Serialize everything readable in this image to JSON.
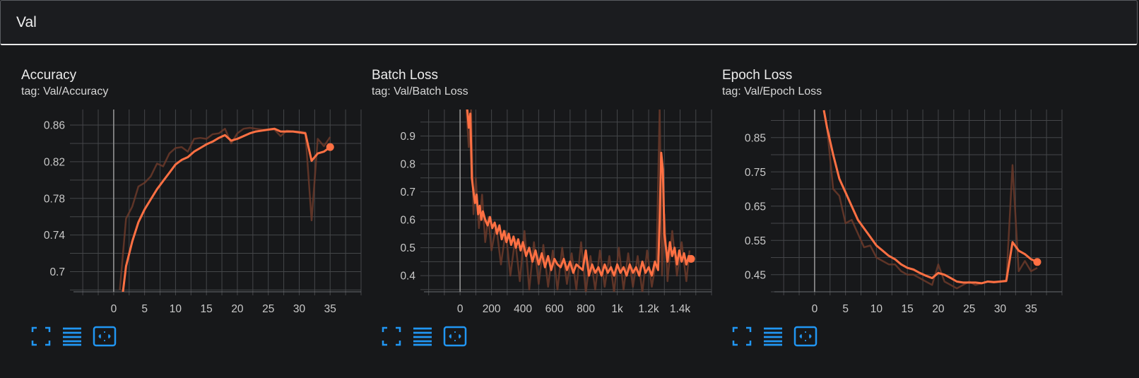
{
  "section": {
    "title": "Val"
  },
  "accent_color": "#ff7043",
  "toolbar_icons": [
    "fullscreen-icon",
    "list-icon",
    "fit-domain-icon"
  ],
  "chart_data": [
    {
      "type": "line",
      "title": "Accuracy",
      "tag": "tag: Val/Accuracy",
      "xlim": [
        -6.5,
        40
      ],
      "ylim": [
        0.678,
        0.877
      ],
      "x_ticks": [
        0,
        5,
        10,
        15,
        20,
        25,
        30,
        35
      ],
      "x_tick_labels": [
        "0",
        "5",
        "10",
        "15",
        "20",
        "25",
        "30",
        "35"
      ],
      "y_ticks": [
        0.7,
        0.74,
        0.78,
        0.82,
        0.86
      ],
      "y_tick_labels": [
        "0.7",
        "0.74",
        "0.78",
        "0.82",
        "0.86"
      ],
      "grid": true,
      "series": [
        {
          "role": "raw",
          "x": [
            1,
            2,
            3,
            4,
            5,
            6,
            7,
            8,
            9,
            10,
            11,
            12,
            13,
            14,
            15,
            16,
            17,
            18,
            19,
            20,
            21,
            22,
            23,
            24,
            25,
            26,
            27,
            28,
            29,
            30,
            31,
            32,
            33,
            34,
            35
          ],
          "values": [
            0.68,
            0.758,
            0.771,
            0.793,
            0.797,
            0.804,
            0.818,
            0.815,
            0.829,
            0.835,
            0.836,
            0.831,
            0.845,
            0.846,
            0.845,
            0.85,
            0.851,
            0.856,
            0.84,
            0.851,
            0.856,
            0.857,
            0.856,
            0.855,
            0.855,
            0.855,
            0.848,
            0.854,
            0.853,
            0.853,
            0.852,
            0.756,
            0.845,
            0.837,
            0.847
          ]
        },
        {
          "role": "smoothed",
          "x": [
            1.5,
            2,
            3,
            4,
            5,
            6,
            7,
            8,
            9,
            10,
            11,
            12,
            13,
            14,
            15,
            16,
            17,
            18,
            19,
            20,
            21,
            22,
            23,
            24,
            25,
            26,
            27,
            28,
            29,
            30,
            31,
            32,
            33,
            34,
            35
          ],
          "values": [
            0.678,
            0.706,
            0.733,
            0.754,
            0.768,
            0.779,
            0.79,
            0.799,
            0.808,
            0.817,
            0.822,
            0.825,
            0.831,
            0.835,
            0.839,
            0.842,
            0.846,
            0.849,
            0.843,
            0.845,
            0.848,
            0.851,
            0.853,
            0.854,
            0.855,
            0.856,
            0.853,
            0.853,
            0.853,
            0.852,
            0.851,
            0.821,
            0.829,
            0.831,
            0.836
          ]
        }
      ]
    },
    {
      "type": "line",
      "title": "Batch Loss",
      "tag": "tag: Val/Batch Loss",
      "xlim": [
        -230,
        1600
      ],
      "ylim": [
        0.342,
        0.995
      ],
      "x_ticks": [
        0,
        200,
        400,
        600,
        800,
        1000,
        1200,
        1400
      ],
      "x_tick_labels": [
        "0",
        "200",
        "400",
        "600",
        "800",
        "1k",
        "1.2k",
        "1.4k"
      ],
      "y_ticks": [
        0.4,
        0.5,
        0.6,
        0.7,
        0.8,
        0.9
      ],
      "y_tick_labels": [
        "0.4",
        "0.5",
        "0.6",
        "0.7",
        "0.8",
        "0.9"
      ],
      "grid": true,
      "series": [
        {
          "role": "raw",
          "x": [
            40,
            55,
            70,
            85,
            100,
            120,
            140,
            160,
            180,
            200,
            230,
            260,
            290,
            320,
            350,
            380,
            410,
            440,
            470,
            500,
            530,
            560,
            590,
            620,
            650,
            680,
            710,
            740,
            770,
            800,
            830,
            860,
            890,
            920,
            950,
            980,
            1010,
            1040,
            1070,
            1100,
            1130,
            1160,
            1190,
            1220,
            1250,
            1270,
            1285,
            1300,
            1320,
            1350,
            1380,
            1410,
            1440,
            1460
          ],
          "values": [
            1.0,
            0.86,
            1.0,
            0.62,
            0.75,
            0.57,
            0.69,
            0.52,
            0.61,
            0.49,
            0.58,
            0.44,
            0.56,
            0.4,
            0.53,
            0.38,
            0.56,
            0.35,
            0.52,
            0.37,
            0.51,
            0.36,
            0.49,
            0.35,
            0.5,
            0.37,
            0.48,
            0.35,
            0.52,
            0.34,
            0.47,
            0.35,
            0.49,
            0.36,
            0.47,
            0.34,
            0.5,
            0.35,
            0.48,
            0.36,
            0.47,
            0.34,
            0.49,
            0.36,
            0.46,
            1.0,
            0.4,
            0.62,
            0.38,
            0.56,
            0.4,
            0.52,
            0.38,
            0.49
          ]
        },
        {
          "role": "smoothed",
          "x": [
            45,
            55,
            65,
            75,
            85,
            95,
            105,
            115,
            125,
            135,
            145,
            160,
            175,
            190,
            205,
            220,
            235,
            250,
            265,
            280,
            295,
            310,
            325,
            340,
            355,
            370,
            385,
            400,
            420,
            440,
            460,
            480,
            500,
            520,
            540,
            560,
            580,
            600,
            620,
            640,
            660,
            680,
            700,
            720,
            740,
            760,
            780,
            800,
            820,
            840,
            860,
            880,
            900,
            920,
            940,
            960,
            980,
            1000,
            1020,
            1040,
            1060,
            1080,
            1100,
            1120,
            1140,
            1160,
            1180,
            1200,
            1220,
            1240,
            1260,
            1270,
            1280,
            1290,
            1300,
            1310,
            1320,
            1335,
            1350,
            1365,
            1380,
            1395,
            1410,
            1425,
            1440,
            1455,
            1470
          ],
          "values": [
            1.0,
            0.93,
            0.98,
            0.75,
            0.7,
            0.66,
            0.69,
            0.62,
            0.65,
            0.6,
            0.63,
            0.6,
            0.58,
            0.61,
            0.57,
            0.59,
            0.55,
            0.58,
            0.53,
            0.56,
            0.52,
            0.55,
            0.51,
            0.54,
            0.5,
            0.53,
            0.49,
            0.52,
            0.47,
            0.5,
            0.45,
            0.49,
            0.44,
            0.48,
            0.43,
            0.47,
            0.42,
            0.46,
            0.44,
            0.43,
            0.46,
            0.42,
            0.45,
            0.41,
            0.44,
            0.43,
            0.42,
            0.49,
            0.4,
            0.44,
            0.41,
            0.43,
            0.4,
            0.44,
            0.41,
            0.43,
            0.4,
            0.44,
            0.41,
            0.43,
            0.4,
            0.44,
            0.41,
            0.43,
            0.4,
            0.45,
            0.41,
            0.43,
            0.4,
            0.45,
            0.42,
            0.6,
            0.84,
            0.78,
            0.55,
            0.5,
            0.45,
            0.52,
            0.47,
            0.5,
            0.44,
            0.49,
            0.45,
            0.48,
            0.44,
            0.47,
            0.46
          ]
        }
      ]
    },
    {
      "type": "line",
      "title": "Epoch Loss",
      "tag": "tag: Val/Epoch Loss",
      "xlim": [
        -6.5,
        40
      ],
      "ylim": [
        0.4,
        0.932
      ],
      "x_ticks": [
        0,
        5,
        10,
        15,
        20,
        25,
        30,
        35
      ],
      "x_tick_labels": [
        "0",
        "5",
        "10",
        "15",
        "20",
        "25",
        "30",
        "35"
      ],
      "y_ticks": [
        0.45,
        0.55,
        0.65,
        0.75,
        0.85
      ],
      "y_tick_labels": [
        "0.45",
        "0.55",
        "0.65",
        "0.75",
        "0.85"
      ],
      "grid": true,
      "series": [
        {
          "role": "raw",
          "x": [
            1.5,
            2,
            3,
            4,
            5,
            6,
            7,
            8,
            9,
            10,
            11,
            12,
            13,
            14,
            15,
            16,
            17,
            18,
            19,
            20,
            21,
            22,
            23,
            24,
            25,
            26,
            27,
            28,
            29,
            30,
            31,
            32,
            33,
            34,
            35,
            36
          ],
          "values": [
            0.93,
            0.88,
            0.7,
            0.68,
            0.6,
            0.61,
            0.57,
            0.53,
            0.535,
            0.5,
            0.49,
            0.48,
            0.48,
            0.46,
            0.45,
            0.45,
            0.44,
            0.43,
            0.42,
            0.48,
            0.43,
            0.42,
            0.41,
            0.42,
            0.43,
            0.42,
            0.425,
            0.43,
            0.43,
            0.43,
            0.43,
            0.77,
            0.46,
            0.49,
            0.46,
            0.47
          ]
        },
        {
          "role": "smoothed",
          "x": [
            1.5,
            2,
            3,
            4,
            5,
            6,
            7,
            8,
            9,
            10,
            11,
            12,
            13,
            14,
            15,
            16,
            17,
            18,
            19,
            20,
            21,
            22,
            23,
            24,
            25,
            26,
            27,
            28,
            29,
            30,
            31,
            32,
            33,
            34,
            35,
            36
          ],
          "values": [
            0.93,
            0.88,
            0.8,
            0.73,
            0.69,
            0.65,
            0.61,
            0.585,
            0.56,
            0.535,
            0.52,
            0.505,
            0.495,
            0.48,
            0.47,
            0.465,
            0.455,
            0.447,
            0.44,
            0.455,
            0.45,
            0.44,
            0.43,
            0.427,
            0.427,
            0.427,
            0.425,
            0.43,
            0.428,
            0.43,
            0.432,
            0.545,
            0.52,
            0.51,
            0.495,
            0.487
          ]
        }
      ]
    }
  ]
}
